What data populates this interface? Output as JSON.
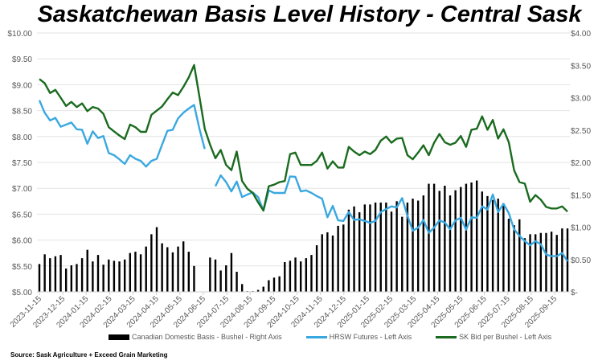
{
  "chart_data": {
    "type": "bar+line",
    "title": "Saskatchewan Basis Level History - Central Sask",
    "left_axis": {
      "ticks": [
        "$10.00",
        "$9.50",
        "$9.00",
        "$8.50",
        "$8.00",
        "$7.50",
        "$7.00",
        "$6.50",
        "$6.00",
        "$5.50",
        "$5.00"
      ],
      "range": [
        5,
        10
      ]
    },
    "right_axis": {
      "ticks": [
        "$4.00",
        "$3.50",
        "$3.00",
        "$2.50",
        "$2.00",
        "$1.50",
        "$1.00",
        "$0.50",
        "$-"
      ],
      "range": [
        0,
        4
      ]
    },
    "x_labels": [
      "2023-11-15",
      "2023-12-15",
      "2024-01-15",
      "2024-02-15",
      "2024-03-15",
      "2024-04-15",
      "2024-05-15",
      "2024-06-15",
      "2024-07-15",
      "2024-08-15",
      "2024-09-15",
      "2024-10-15",
      "2024-11-15",
      "2024-12-15",
      "2025-01-15",
      "2025-02-15",
      "2025-03-15",
      "2025-04-15",
      "2025-05-15",
      "2025-06-15",
      "2025-07-15",
      "2025-08-15",
      "2025-09-15"
    ],
    "grid": true,
    "legend_position": "bottom",
    "series": [
      {
        "name": "Canadian Domestic Basis - Bushel - Right Axis",
        "type": "bar",
        "axis": "right",
        "color": "#000000",
        "values": [
          0.43,
          0.58,
          0.52,
          0.55,
          0.57,
          0.36,
          0.41,
          0.43,
          0.52,
          0.65,
          0.47,
          0.57,
          0.42,
          0.5,
          0.48,
          0.47,
          0.5,
          0.6,
          0.62,
          0.58,
          0.7,
          0.89,
          1.0,
          0.75,
          0.69,
          0.61,
          0.7,
          0.78,
          0.62,
          0.4,
          null,
          null,
          0.53,
          0.5,
          0.33,
          0.41,
          0.6,
          0.31,
          0.12,
          0.01,
          0.01,
          0.03,
          0.08,
          0.18,
          0.22,
          0.24,
          0.46,
          0.48,
          0.53,
          0.47,
          0.52,
          0.57,
          0.72,
          0.89,
          0.92,
          0.87,
          1.02,
          1.04,
          1.27,
          1.32,
          1.23,
          1.35,
          1.35,
          1.38,
          1.38,
          1.38,
          1.24,
          1.4,
          1.16,
          1.38,
          1.44,
          1.41,
          1.49,
          1.67,
          1.67,
          1.56,
          1.64,
          1.49,
          1.57,
          1.62,
          1.67,
          1.69,
          1.72,
          1.55,
          1.48,
          1.42,
          1.44,
          1.37,
          1.13,
          1.03,
          1.12,
          0.83,
          0.89,
          0.89,
          0.91,
          0.91,
          0.93,
          0.88,
          0.98,
          0.98
        ]
      },
      {
        "name": "HRSW Futures - Left Axis",
        "type": "line",
        "axis": "left",
        "color": "#3aa8e0",
        "values": [
          8.7,
          8.46,
          8.31,
          8.36,
          8.19,
          8.23,
          8.27,
          8.14,
          8.13,
          7.86,
          8.1,
          7.97,
          8.01,
          7.68,
          7.64,
          7.56,
          7.47,
          7.64,
          7.57,
          7.53,
          7.42,
          7.53,
          7.57,
          7.84,
          8.11,
          8.13,
          8.35,
          8.46,
          8.54,
          8.61,
          8.15,
          7.76,
          null,
          7.04,
          7.25,
          7.12,
          6.94,
          7.13,
          6.83,
          6.88,
          6.92,
          6.83,
          6.57,
          6.96,
          6.91,
          6.91,
          6.91,
          7.23,
          7.22,
          6.94,
          6.96,
          6.91,
          6.85,
          6.8,
          6.44,
          6.66,
          6.38,
          6.37,
          6.54,
          6.39,
          6.4,
          6.37,
          6.33,
          6.37,
          6.54,
          6.6,
          6.65,
          6.63,
          6.81,
          6.47,
          6.18,
          6.24,
          6.39,
          6.14,
          6.24,
          6.38,
          6.34,
          6.21,
          6.38,
          6.43,
          6.2,
          6.44,
          6.43,
          6.65,
          6.59,
          6.88,
          6.54,
          6.7,
          6.52,
          6.21,
          6.08,
          5.98,
          5.9,
          5.98,
          5.92,
          5.72,
          5.69,
          5.69,
          5.75,
          5.59
        ]
      },
      {
        "name": "SK Bid per Bushel - Left Axis",
        "type": "line",
        "axis": "left",
        "color": "#1a6b1f",
        "values": [
          9.11,
          9.03,
          8.84,
          8.9,
          8.75,
          8.59,
          8.67,
          8.57,
          8.64,
          8.49,
          8.57,
          8.54,
          8.44,
          8.18,
          8.1,
          8.02,
          7.95,
          8.23,
          8.18,
          8.09,
          8.09,
          8.42,
          8.5,
          8.58,
          8.72,
          8.85,
          8.8,
          8.96,
          9.14,
          9.38,
          8.77,
          8.15,
          7.84,
          7.58,
          7.74,
          7.45,
          7.35,
          7.71,
          7.14,
          6.99,
          6.91,
          6.73,
          6.57,
          7.04,
          7.07,
          7.12,
          7.14,
          7.66,
          7.69,
          7.45,
          7.45,
          7.45,
          7.53,
          7.69,
          7.38,
          7.52,
          7.4,
          7.4,
          7.8,
          7.71,
          7.64,
          7.71,
          7.66,
          7.74,
          7.92,
          8.0,
          7.88,
          7.96,
          7.97,
          7.64,
          7.56,
          7.69,
          7.83,
          7.64,
          7.88,
          8.05,
          7.89,
          7.84,
          7.88,
          8.01,
          7.8,
          8.13,
          8.15,
          8.39,
          8.13,
          8.32,
          7.96,
          8.14,
          7.89,
          7.35,
          7.12,
          7.09,
          6.74,
          6.87,
          6.78,
          6.64,
          6.61,
          6.61,
          6.65,
          6.55
        ]
      }
    ]
  },
  "source": "Source: Sask Agriculture + Exceed Grain Marketing"
}
